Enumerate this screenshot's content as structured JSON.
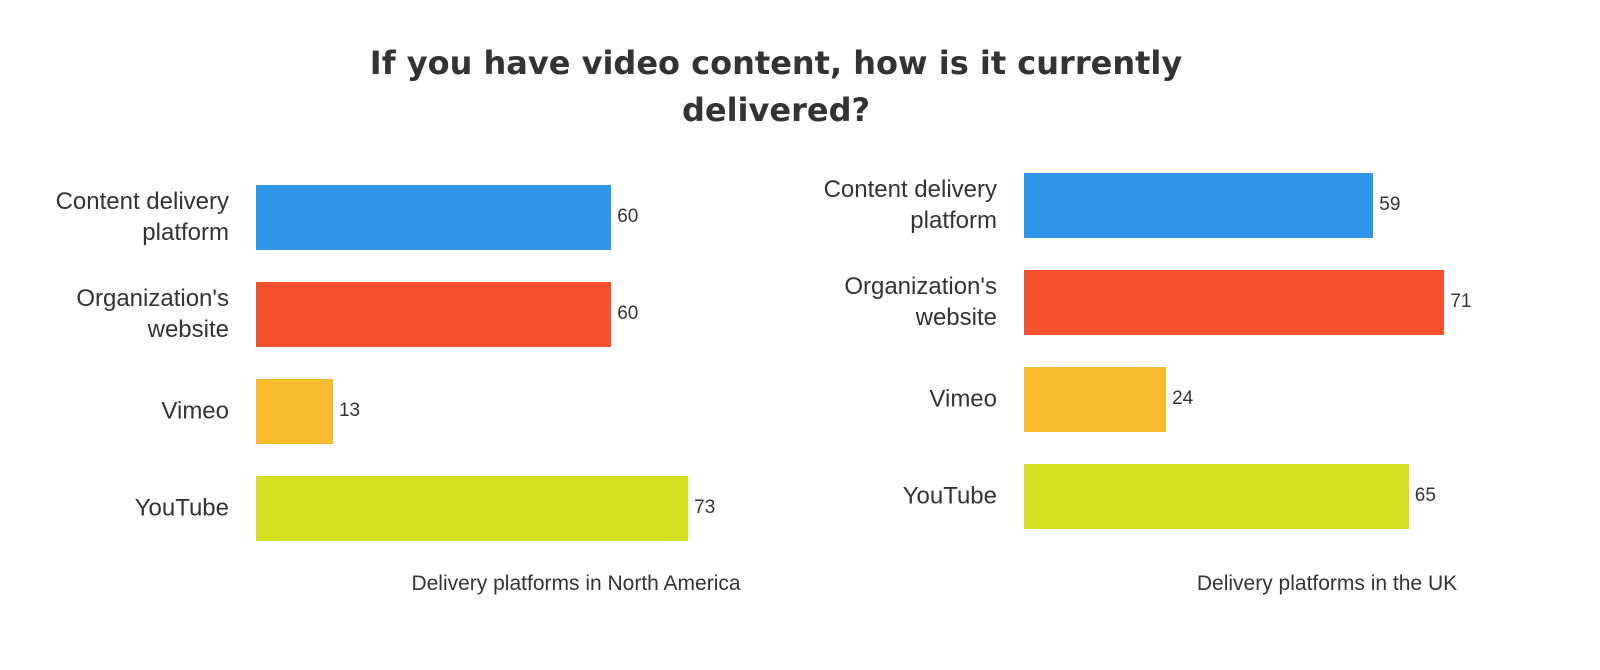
{
  "title": "If you have video content, how is it currently delivered?",
  "chart_data": [
    {
      "type": "bar",
      "orientation": "horizontal",
      "caption": "Delivery platforms in North America",
      "categories": [
        "Content delivery platform",
        "Organization's website",
        "Vimeo",
        "YouTube"
      ],
      "values": [
        60,
        60,
        13,
        73
      ],
      "colors": [
        "#3096ea",
        "#f54f2c",
        "#f6ba2c",
        "#d6e022"
      ],
      "xlim": [
        0,
        100
      ]
    },
    {
      "type": "bar",
      "orientation": "horizontal",
      "caption": "Delivery platforms in the UK",
      "categories": [
        "Content delivery platform",
        "Organization's website",
        "Vimeo",
        "YouTube"
      ],
      "values": [
        59,
        71,
        24,
        65
      ],
      "colors": [
        "#3096ea",
        "#f54f2c",
        "#f6ba2c",
        "#d6e022"
      ],
      "xlim": [
        0,
        100
      ]
    }
  ]
}
